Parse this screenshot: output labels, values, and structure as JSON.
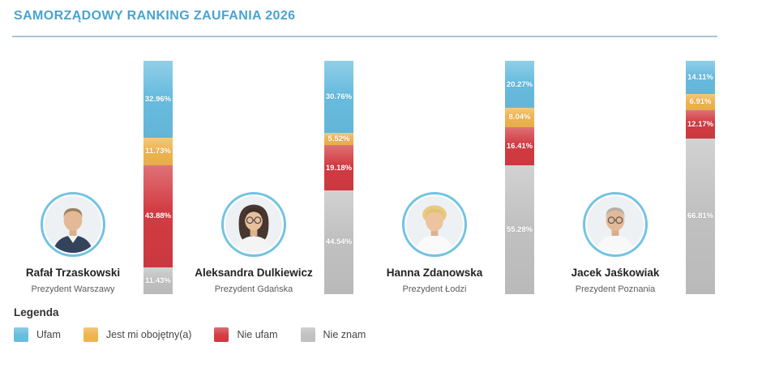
{
  "header": {
    "title": "SAMORZĄDOWY RANKING ZAUFANIA 2026"
  },
  "people": [
    {
      "name": "Rafał Trzaskowski",
      "role": "Prezydent Warszawy"
    },
    {
      "name": "Aleksandra Dulkiewicz",
      "role": "Prezydent Gdańska"
    },
    {
      "name": "Hanna Zdanowska",
      "role": "Prezydent Łodzi"
    },
    {
      "name": "Jacek Jaśkowiak",
      "role": "Prezydent Poznania"
    }
  ],
  "legend": {
    "title": "Legenda",
    "items": [
      {
        "key": "ufam",
        "label": "Ufam",
        "color": "#68bcdf"
      },
      {
        "key": "obojetny",
        "label": "Jest mi obojętny(a)",
        "color": "#efb44e"
      },
      {
        "key": "nie-ufam",
        "label": "Nie ufam",
        "color": "#d23b42"
      },
      {
        "key": "nie-znam",
        "label": "Nie znam",
        "color": "#c1c1c1"
      }
    ]
  },
  "chart_data": {
    "type": "bar",
    "stacked": true,
    "orientation": "vertical",
    "title": "SAMORZĄDOWY RANKING ZAUFANIA 2026",
    "categories": [
      "Rafał Trzaskowski",
      "Aleksandra Dulkiewicz",
      "Hanna Zdanowska",
      "Jacek Jaśkowiak"
    ],
    "series": [
      {
        "key": "ufam",
        "name": "Ufam",
        "color": "#68bcdf",
        "values": [
          32.96,
          30.76,
          20.27,
          14.11
        ]
      },
      {
        "key": "obojetny",
        "name": "Jest mi obojętny(a)",
        "color": "#efb44e",
        "values": [
          11.73,
          5.52,
          8.04,
          6.91
        ]
      },
      {
        "key": "nie-ufam",
        "name": "Nie ufam",
        "color": "#d23b42",
        "values": [
          43.88,
          19.18,
          16.41,
          12.17
        ]
      },
      {
        "key": "nie-znam",
        "name": "Nie znam",
        "color": "#c1c1c1",
        "values": [
          11.43,
          44.54,
          55.28,
          66.81
        ]
      }
    ],
    "value_format": "percent",
    "ylim": [
      0,
      100
    ],
    "grid": false,
    "legend_position": "bottom-left"
  },
  "colors": {
    "title": "#48a4ce",
    "divider": "#a9c5d1",
    "avatar_ring": "#72c3e2",
    "background": "#ffffff"
  }
}
